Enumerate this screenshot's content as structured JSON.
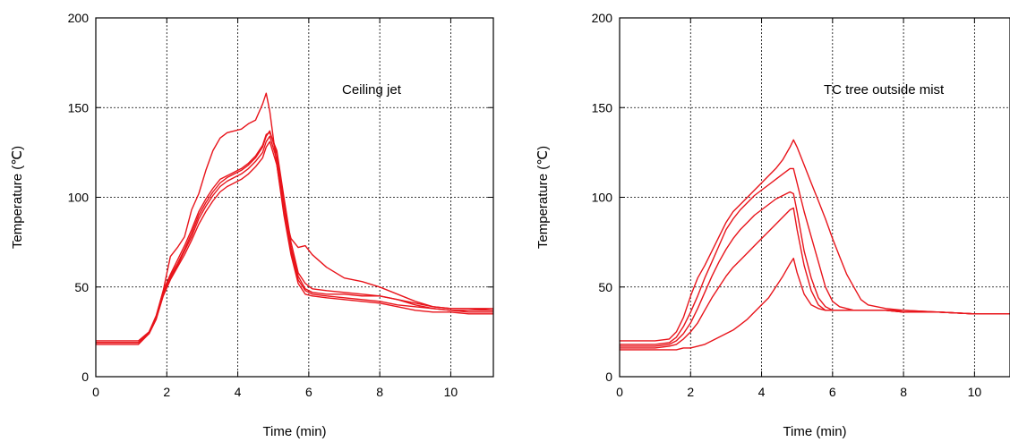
{
  "chart_data": [
    {
      "type": "line",
      "annotation": "Ceiling jet",
      "xlabel": "Time (min)",
      "ylabel": "Temperature (℃)",
      "xlim": [
        0,
        11.2
      ],
      "ylim": [
        0,
        200
      ],
      "xticks": [
        0,
        2,
        4,
        6,
        8,
        10
      ],
      "yticks": [
        0,
        50,
        100,
        150,
        200
      ],
      "grid": true,
      "color": "#e8141b",
      "series": [
        {
          "x": [
            0,
            1.2,
            1.5,
            1.7,
            1.9,
            2.1,
            2.3,
            2.5,
            2.7,
            2.9,
            3.1,
            3.3,
            3.5,
            3.7,
            3.9,
            4.1,
            4.3,
            4.5,
            4.7,
            4.8,
            4.9,
            5.1,
            5.3,
            5.5,
            5.7,
            5.9,
            6.1,
            6.5,
            7,
            7.5,
            8,
            8.5,
            9,
            9.5,
            10,
            10.5,
            11.2
          ],
          "y": [
            20,
            20,
            25,
            33,
            48,
            67,
            72,
            78,
            93,
            102,
            115,
            126,
            133,
            136,
            137,
            138,
            141,
            143,
            152,
            158,
            148,
            118,
            92,
            77,
            72,
            73,
            68,
            61,
            55,
            53,
            50,
            46,
            42,
            39,
            38,
            38,
            38
          ]
        },
        {
          "x": [
            0,
            1.2,
            1.5,
            1.7,
            1.9,
            2.1,
            2.3,
            2.5,
            2.7,
            2.9,
            3.1,
            3.3,
            3.5,
            3.7,
            3.9,
            4.1,
            4.3,
            4.5,
            4.7,
            4.8,
            4.9,
            5.1,
            5.3,
            5.5,
            5.7,
            5.9,
            6.1,
            6.5,
            7,
            7.5,
            8,
            8.5,
            9,
            9.5,
            10,
            10.5,
            11.2
          ],
          "y": [
            19,
            19,
            24,
            32,
            46,
            56,
            63,
            71,
            80,
            90,
            97,
            103,
            108,
            111,
            113,
            115,
            118,
            122,
            128,
            134,
            137,
            124,
            97,
            72,
            56,
            49,
            47,
            46,
            46,
            45,
            45,
            43,
            41,
            39,
            38,
            38,
            37
          ]
        },
        {
          "x": [
            0,
            1.2,
            1.5,
            1.7,
            1.9,
            2.1,
            2.3,
            2.5,
            2.7,
            2.9,
            3.1,
            3.3,
            3.5,
            3.7,
            3.9,
            4.1,
            4.3,
            4.5,
            4.7,
            4.8,
            4.9,
            5.1,
            5.3,
            5.5,
            5.7,
            5.9,
            6.1,
            6.5,
            7,
            7.5,
            8,
            8.5,
            9,
            9.5,
            10,
            10.5,
            11.2
          ],
          "y": [
            19,
            19,
            25,
            33,
            47,
            55,
            62,
            70,
            78,
            88,
            95,
            101,
            106,
            109,
            111,
            113,
            116,
            120,
            125,
            131,
            134,
            121,
            93,
            70,
            54,
            48,
            46,
            45,
            44,
            43,
            42,
            40,
            39,
            38,
            37,
            36,
            36
          ]
        },
        {
          "x": [
            0,
            1.2,
            1.5,
            1.7,
            1.9,
            2.1,
            2.3,
            2.5,
            2.7,
            2.9,
            3.1,
            3.3,
            3.5,
            3.7,
            3.9,
            4.1,
            4.3,
            4.5,
            4.7,
            4.8,
            4.9,
            5.1,
            5.3,
            5.5,
            5.7,
            5.9,
            6.1,
            6.5,
            7,
            7.5,
            8,
            8.5,
            9,
            9.5,
            10,
            10.5,
            11.2
          ],
          "y": [
            18,
            18,
            24,
            32,
            45,
            54,
            61,
            68,
            76,
            85,
            92,
            98,
            103,
            106,
            108,
            110,
            113,
            117,
            122,
            128,
            131,
            118,
            90,
            68,
            52,
            46,
            45,
            44,
            43,
            42,
            41,
            39,
            37,
            36,
            36,
            35,
            35
          ]
        },
        {
          "x": [
            0,
            1.2,
            1.5,
            1.7,
            1.9,
            2.1,
            2.3,
            2.5,
            2.7,
            2.9,
            3.1,
            3.3,
            3.5,
            3.7,
            3.9,
            4.1,
            4.3,
            4.5,
            4.7,
            4.8,
            4.9,
            5.1,
            5.3,
            5.5,
            5.7,
            5.9,
            6.1,
            6.5,
            7,
            7.5,
            8,
            8.5,
            9,
            9.5,
            10,
            10.5,
            11.2
          ],
          "y": [
            19,
            19,
            25,
            34,
            48,
            57,
            65,
            73,
            82,
            92,
            99,
            105,
            110,
            112,
            114,
            116,
            119,
            123,
            129,
            135,
            136,
            126,
            100,
            75,
            58,
            52,
            49,
            48,
            47,
            46,
            45,
            43,
            40,
            38,
            37,
            37,
            37
          ]
        }
      ]
    },
    {
      "type": "line",
      "annotation": "TC tree outside mist",
      "xlabel": "Time (min)",
      "ylabel": "Temperature (℃)",
      "xlim": [
        0,
        11
      ],
      "ylim": [
        0,
        200
      ],
      "xticks": [
        0,
        2,
        4,
        6,
        8,
        10
      ],
      "yticks": [
        0,
        50,
        100,
        150,
        200
      ],
      "grid": true,
      "color": "#e8141b",
      "series": [
        {
          "x": [
            0,
            1,
            1.4,
            1.6,
            1.8,
            2,
            2.2,
            2.4,
            2.6,
            2.8,
            3,
            3.2,
            3.4,
            3.6,
            3.8,
            4,
            4.2,
            4.4,
            4.6,
            4.8,
            4.9,
            5,
            5.2,
            5.4,
            5.6,
            5.8,
            6,
            6.2,
            6.4,
            6.6,
            6.8,
            7,
            7.5,
            8,
            9,
            10,
            11
          ],
          "y": [
            20,
            20,
            21,
            25,
            33,
            45,
            55,
            62,
            70,
            78,
            86,
            92,
            96,
            100,
            104,
            108,
            112,
            116,
            121,
            128,
            132,
            128,
            118,
            108,
            98,
            88,
            77,
            67,
            57,
            50,
            43,
            40,
            38,
            37,
            36,
            35,
            35
          ]
        },
        {
          "x": [
            0,
            1,
            1.4,
            1.6,
            1.8,
            2,
            2.2,
            2.4,
            2.6,
            2.8,
            3,
            3.2,
            3.4,
            3.6,
            3.8,
            4,
            4.2,
            4.4,
            4.6,
            4.8,
            4.9,
            5,
            5.2,
            5.4,
            5.6,
            5.8,
            6,
            6.2,
            6.4,
            6.6,
            6.8,
            7,
            7.5,
            8,
            9,
            10,
            11
          ],
          "y": [
            18,
            18,
            19,
            22,
            28,
            36,
            45,
            55,
            64,
            73,
            82,
            88,
            93,
            97,
            101,
            104,
            107,
            110,
            113,
            116,
            116,
            108,
            92,
            78,
            64,
            50,
            42,
            39,
            38,
            37,
            37,
            37,
            37,
            37,
            36,
            35,
            35
          ]
        },
        {
          "x": [
            0,
            1,
            1.4,
            1.6,
            1.8,
            2,
            2.2,
            2.4,
            2.6,
            2.8,
            3,
            3.2,
            3.4,
            3.6,
            3.8,
            4,
            4.2,
            4.4,
            4.6,
            4.8,
            4.9,
            5,
            5.2,
            5.4,
            5.6,
            5.8,
            6,
            6.2,
            6.4,
            6.6,
            6.8,
            7,
            7.5,
            8,
            9,
            10,
            11
          ],
          "y": [
            17,
            17,
            18,
            20,
            24,
            30,
            38,
            47,
            56,
            64,
            71,
            77,
            82,
            86,
            90,
            93,
            96,
            99,
            101,
            103,
            102,
            92,
            70,
            55,
            44,
            39,
            37,
            37,
            37,
            37,
            37,
            37,
            37,
            36,
            36,
            35,
            35
          ]
        },
        {
          "x": [
            0,
            1,
            1.4,
            1.6,
            1.8,
            2,
            2.2,
            2.4,
            2.6,
            2.8,
            3,
            3.2,
            3.4,
            3.6,
            3.8,
            4,
            4.2,
            4.4,
            4.6,
            4.8,
            4.9,
            5,
            5.2,
            5.4,
            5.6,
            5.8,
            6,
            6.2,
            6.4,
            6.6,
            6.8,
            7,
            7.5,
            8,
            9,
            10,
            11
          ],
          "y": [
            16,
            16,
            17,
            18,
            21,
            25,
            30,
            37,
            44,
            50,
            56,
            61,
            65,
            69,
            73,
            77,
            81,
            85,
            89,
            93,
            94,
            82,
            62,
            48,
            40,
            37,
            37,
            37,
            37,
            37,
            37,
            37,
            37,
            36,
            36,
            35,
            35
          ]
        },
        {
          "x": [
            0,
            1,
            1.4,
            1.6,
            1.8,
            2,
            2.2,
            2.4,
            2.6,
            2.8,
            3,
            3.2,
            3.4,
            3.6,
            3.8,
            4,
            4.2,
            4.4,
            4.6,
            4.8,
            4.9,
            5,
            5.2,
            5.4,
            5.6,
            5.8,
            6,
            6.2,
            6.4,
            6.6,
            6.8,
            7,
            7.5,
            8,
            9,
            10,
            11
          ],
          "y": [
            15,
            15,
            15,
            15,
            16,
            16,
            17,
            18,
            20,
            22,
            24,
            26,
            29,
            32,
            36,
            40,
            44,
            50,
            56,
            63,
            66,
            58,
            46,
            40,
            38,
            37,
            37,
            37,
            37,
            37,
            37,
            37,
            37,
            36,
            36,
            35,
            35
          ]
        }
      ]
    }
  ]
}
